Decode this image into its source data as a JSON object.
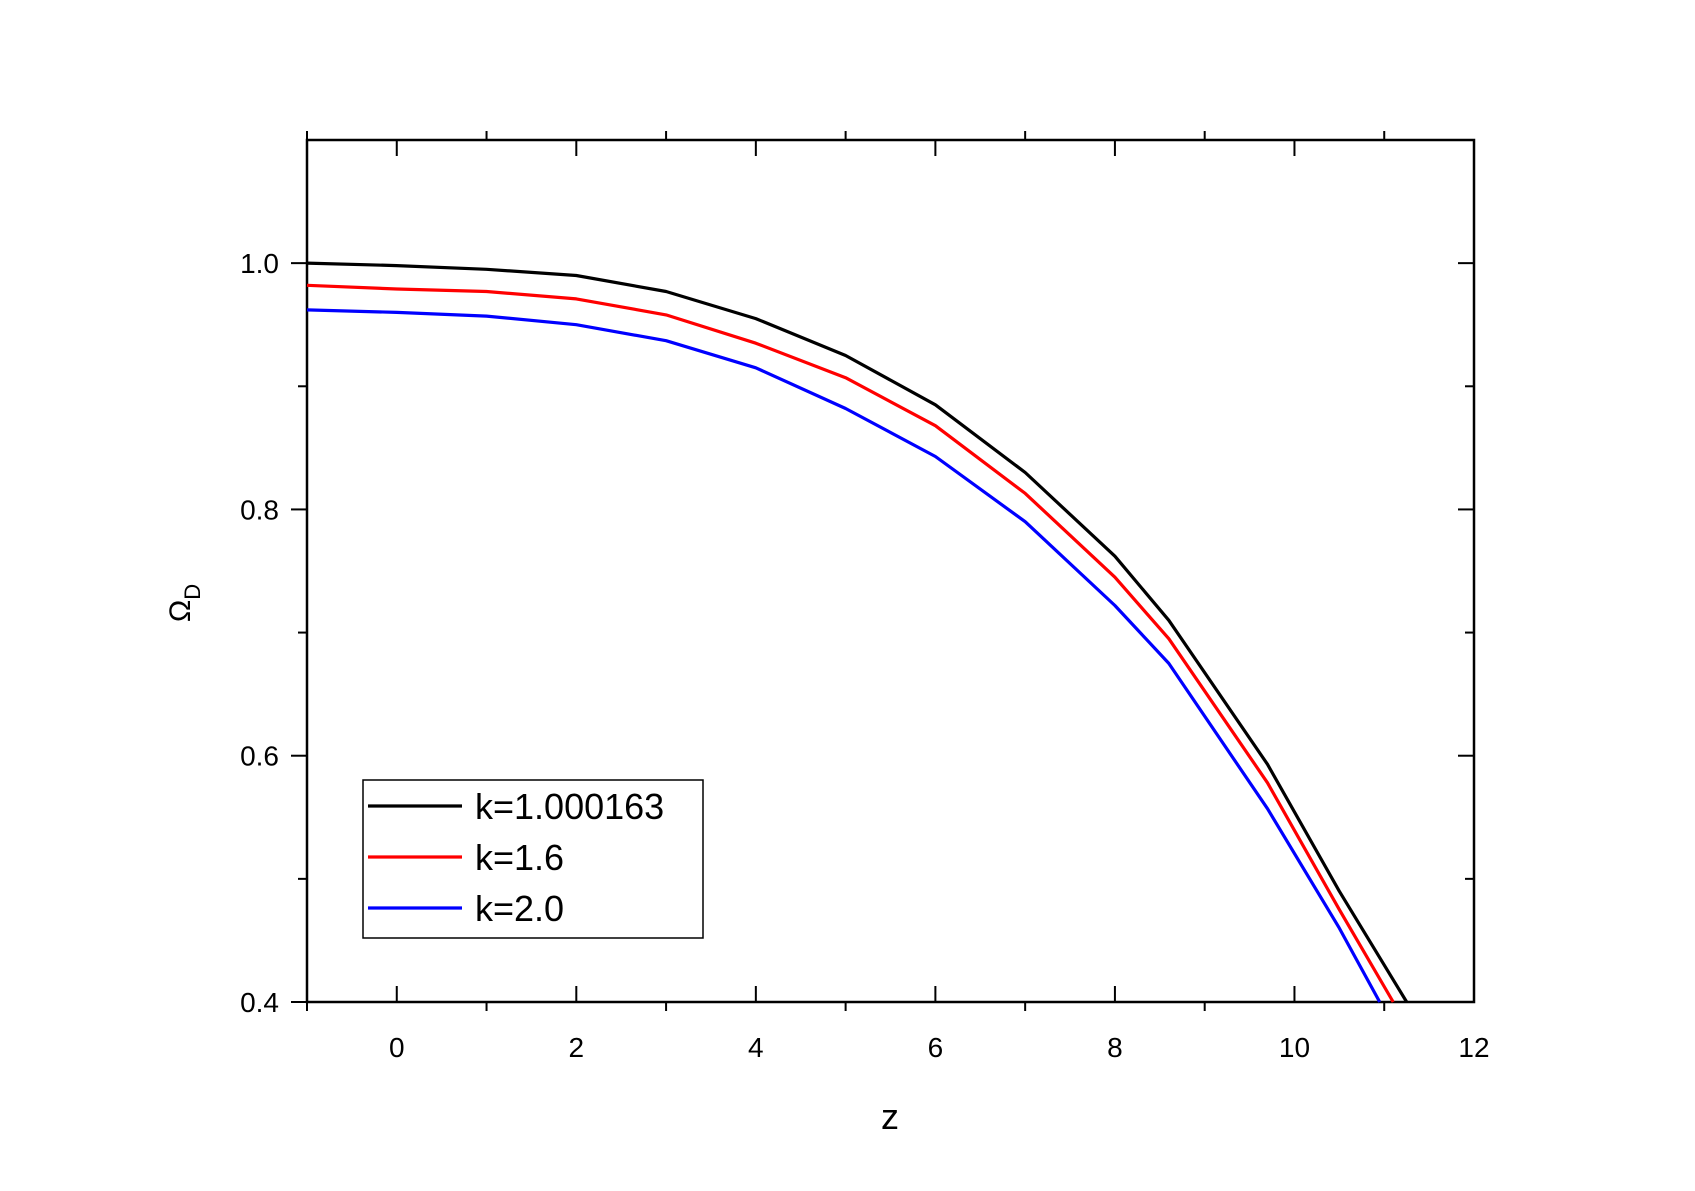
{
  "chart_data": {
    "type": "line",
    "title": "",
    "xlabel": "z",
    "ylabel": {
      "main": "Ω",
      "subscript": "D"
    },
    "xlim": [
      -1,
      12
    ],
    "ylim": [
      0.4,
      1.1
    ],
    "x_ticks": [
      0,
      2,
      4,
      6,
      8,
      10,
      12
    ],
    "x_minor_ticks": [
      -1,
      1,
      3,
      5,
      7,
      9,
      11
    ],
    "y_ticks": [
      0.4,
      0.6,
      0.8,
      1.0
    ],
    "y_tick_labels": [
      "0.4",
      "0.6",
      "0.8",
      "1.0"
    ],
    "y_minor_ticks": [
      0.5,
      0.7,
      0.9
    ],
    "grid": false,
    "legend_position": "bottom-left",
    "series": [
      {
        "name": "k=1.000163",
        "color": "#000000",
        "x": [
          -1,
          0,
          1,
          2,
          3,
          4,
          5,
          6,
          7,
          8,
          8.6,
          9.7,
          10.5,
          11.25
        ],
        "y": [
          1.0,
          0.998,
          0.995,
          0.99,
          0.977,
          0.955,
          0.925,
          0.885,
          0.83,
          0.762,
          0.71,
          0.593,
          0.49,
          0.4
        ]
      },
      {
        "name": "k=1.6",
        "color": "#ff0000",
        "x": [
          -1,
          0,
          1,
          2,
          3,
          4,
          5,
          6,
          7,
          8,
          8.6,
          9.7,
          10.5,
          11.1
        ],
        "y": [
          0.982,
          0.979,
          0.977,
          0.971,
          0.958,
          0.935,
          0.907,
          0.868,
          0.813,
          0.745,
          0.695,
          0.578,
          0.475,
          0.4
        ]
      },
      {
        "name": "k=2.0",
        "color": "#0000ff",
        "x": [
          -1,
          0,
          1,
          2,
          3,
          4,
          5,
          6,
          7,
          8,
          8.6,
          9.7,
          10.5,
          10.95
        ],
        "y": [
          0.962,
          0.96,
          0.957,
          0.95,
          0.937,
          0.915,
          0.882,
          0.843,
          0.79,
          0.722,
          0.675,
          0.557,
          0.46,
          0.4
        ]
      }
    ]
  }
}
